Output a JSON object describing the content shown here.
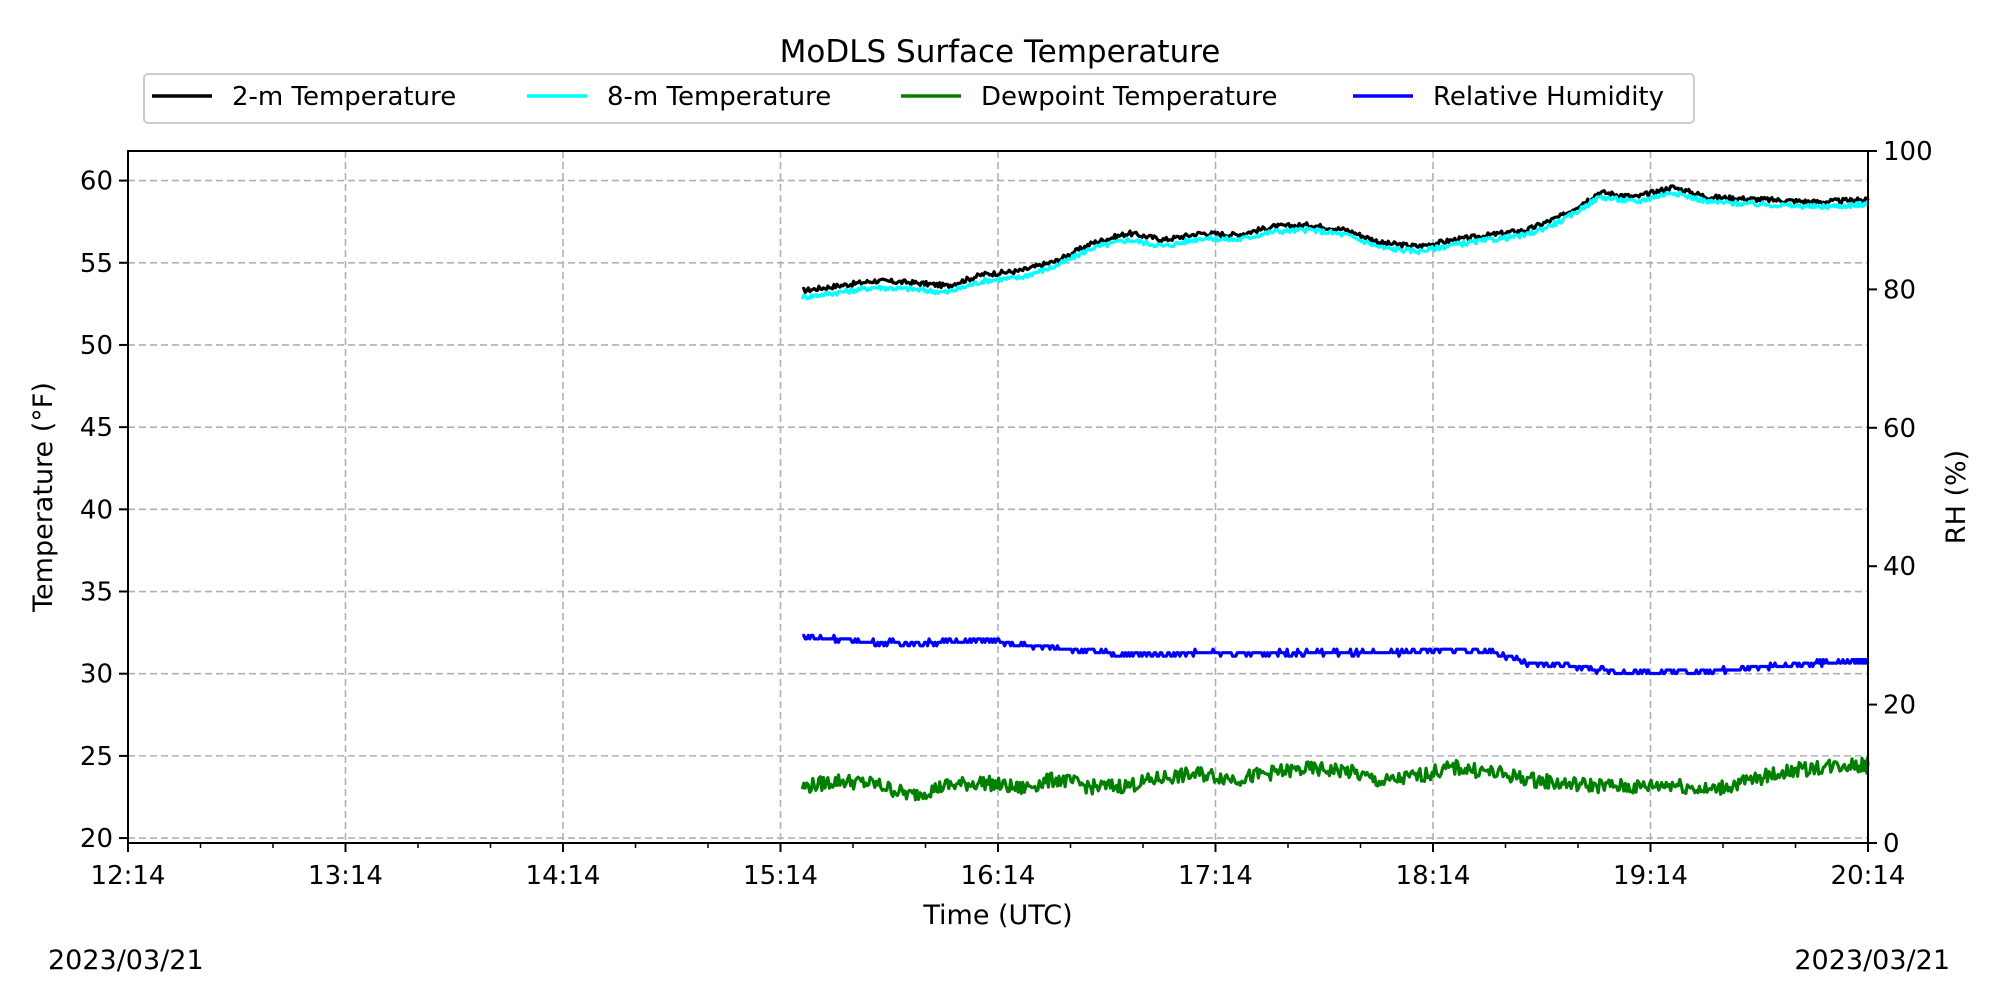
{
  "chart_data": {
    "type": "line",
    "title": "MoDLS Surface Temperature",
    "xlabel": "Time (UTC)",
    "ylabel": "Temperature ($^\\circ$F)",
    "y2label": "RH (%)",
    "start_date_label": "2023/03/21",
    "end_date_label": "2023/03/21",
    "xlim": [
      "12:14",
      "20:14"
    ],
    "ylim": [
      19.7,
      61.8
    ],
    "y2lim": [
      0,
      100
    ],
    "x_ticks": [
      "12:14",
      "13:14",
      "14:14",
      "15:14",
      "16:14",
      "17:14",
      "18:14",
      "19:14",
      "20:14"
    ],
    "y_ticks": [
      20,
      25,
      30,
      35,
      40,
      45,
      50,
      55,
      60
    ],
    "y2_ticks": [
      0,
      20,
      40,
      60,
      80,
      100
    ],
    "grid": true,
    "legend": "top, horizontal, above plot",
    "series": [
      {
        "name": "2-m Temperature",
        "axis": "left",
        "color": "#000000",
        "x": [
          "15:20",
          "15:30",
          "15:40",
          "15:50",
          "16:00",
          "16:10",
          "16:20",
          "16:30",
          "16:40",
          "16:50",
          "17:00",
          "17:10",
          "17:20",
          "17:30",
          "17:40",
          "17:50",
          "18:00",
          "18:10",
          "18:20",
          "18:30",
          "18:40",
          "18:50",
          "19:00",
          "19:10",
          "19:20",
          "19:30",
          "19:40",
          "19:50",
          "20:00",
          "20:10",
          "20:14"
        ],
        "y": [
          53.3,
          53.6,
          53.9,
          53.8,
          53.6,
          54.3,
          54.5,
          55.1,
          56.2,
          56.8,
          56.4,
          56.8,
          56.7,
          57.2,
          57.3,
          57.0,
          56.2,
          56.0,
          56.4,
          56.7,
          57.0,
          57.9,
          59.3,
          59.0,
          59.6,
          59.0,
          58.9,
          58.8,
          58.7,
          58.8,
          58.8
        ]
      },
      {
        "name": "8-m Temperature",
        "axis": "left",
        "color": "#00ffff",
        "x": [
          "15:20",
          "15:30",
          "15:40",
          "15:50",
          "16:00",
          "16:10",
          "16:20",
          "16:30",
          "16:40",
          "16:50",
          "17:00",
          "17:10",
          "17:20",
          "17:30",
          "17:40",
          "17:50",
          "18:00",
          "18:10",
          "18:20",
          "18:30",
          "18:40",
          "18:50",
          "19:00",
          "19:10",
          "19:20",
          "19:30",
          "19:40",
          "19:50",
          "20:00",
          "20:10",
          "20:14"
        ],
        "y": [
          52.9,
          53.2,
          53.5,
          53.4,
          53.2,
          53.9,
          54.1,
          54.8,
          55.9,
          56.4,
          56.0,
          56.5,
          56.4,
          56.9,
          57.0,
          56.7,
          55.9,
          55.7,
          56.1,
          56.4,
          56.7,
          57.6,
          59.0,
          58.7,
          59.3,
          58.7,
          58.6,
          58.5,
          58.4,
          58.5,
          58.6
        ]
      },
      {
        "name": "Dewpoint Temperature",
        "axis": "left",
        "color": "#008000",
        "x": [
          "15:20",
          "15:30",
          "15:40",
          "15:50",
          "16:00",
          "16:10",
          "16:20",
          "16:30",
          "16:40",
          "16:50",
          "17:00",
          "17:10",
          "17:20",
          "17:30",
          "17:40",
          "17:50",
          "18:00",
          "18:10",
          "18:20",
          "18:30",
          "18:40",
          "18:50",
          "19:00",
          "19:10",
          "19:20",
          "19:30",
          "19:40",
          "19:50",
          "20:00",
          "20:10",
          "20:14"
        ],
        "y": [
          23.1,
          23.5,
          23.3,
          22.6,
          23.2,
          23.4,
          23.0,
          23.6,
          23.1,
          23.2,
          23.7,
          23.9,
          23.6,
          24.0,
          24.2,
          24.1,
          23.4,
          23.8,
          24.3,
          24.0,
          23.6,
          23.3,
          23.2,
          23.1,
          23.3,
          22.9,
          23.4,
          24.0,
          24.3,
          24.5,
          24.4
        ]
      },
      {
        "name": "Relative Humidity",
        "axis": "right",
        "color": "#0000ff",
        "x": [
          "15:20",
          "15:30",
          "15:40",
          "15:50",
          "16:00",
          "16:10",
          "16:20",
          "16:30",
          "16:40",
          "16:50",
          "17:00",
          "17:10",
          "17:20",
          "17:30",
          "17:40",
          "17:50",
          "18:00",
          "18:10",
          "18:20",
          "18:30",
          "18:40",
          "18:50",
          "19:00",
          "19:10",
          "19:20",
          "19:30",
          "19:40",
          "19:50",
          "20:00",
          "20:10",
          "20:14"
        ],
        "y": [
          29.8,
          29.5,
          29.0,
          28.9,
          29.0,
          29.3,
          28.6,
          28.3,
          27.6,
          27.2,
          27.4,
          27.5,
          27.3,
          27.4,
          27.5,
          27.5,
          27.4,
          27.8,
          27.9,
          27.7,
          25.9,
          25.8,
          25.0,
          24.6,
          24.8,
          24.8,
          25.3,
          25.6,
          26.0,
          26.2,
          26.2
        ]
      }
    ]
  }
}
